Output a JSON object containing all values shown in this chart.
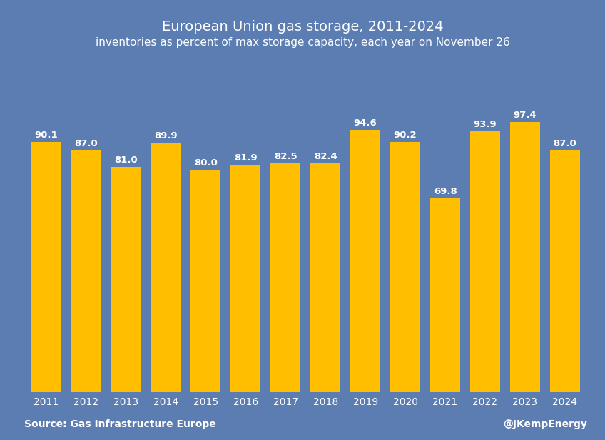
{
  "title": "European Union gas storage, 2011-2024",
  "subtitle": "inventories as percent of max storage capacity, each year on November 26",
  "years": [
    2011,
    2012,
    2013,
    2014,
    2015,
    2016,
    2017,
    2018,
    2019,
    2020,
    2021,
    2022,
    2023,
    2024
  ],
  "values": [
    90.1,
    87.0,
    81.0,
    89.9,
    80.0,
    81.9,
    82.5,
    82.4,
    94.6,
    90.2,
    69.8,
    93.9,
    97.4,
    87.0
  ],
  "bar_color": "#FFBF00",
  "background_color": "#5B7DB1",
  "text_color": "#FFFFFF",
  "source_left": "Source: Gas Infrastructure Europe",
  "source_right": "@JKempEnergy",
  "ylim": [
    0,
    108
  ],
  "title_fontsize": 14,
  "subtitle_fontsize": 11,
  "label_fontsize": 9.5,
  "tick_fontsize": 10,
  "source_fontsize": 10,
  "bar_width": 0.75
}
